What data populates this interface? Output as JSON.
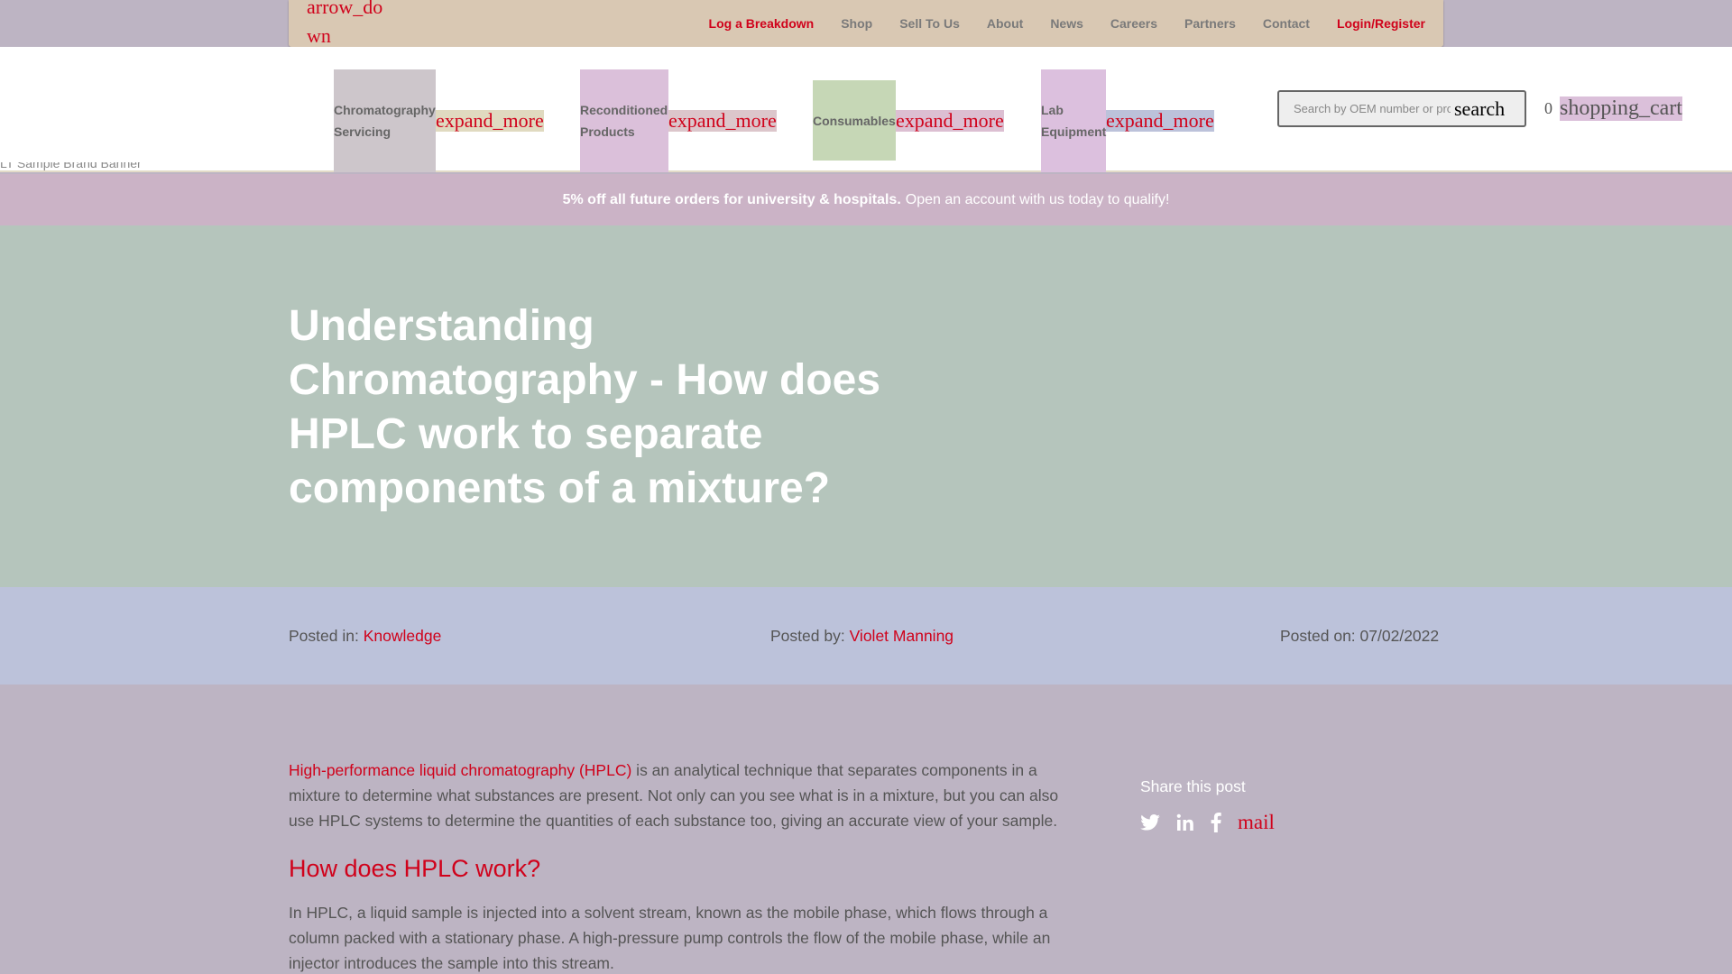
{
  "topbar": {
    "arrow_icon_text": "arrow_down",
    "links": [
      "Log a Breakdown",
      "Shop",
      "Sell To Us",
      "About",
      "News",
      "Careers",
      "Partners",
      "Contact",
      "Login/Register"
    ]
  },
  "menu": {
    "items": [
      {
        "label": "Chromatography Servicing",
        "expand": "expand_more"
      },
      {
        "label": "Reconditioned Products",
        "expand": "expand_more"
      },
      {
        "label": "Consumables",
        "expand": "expand_more"
      },
      {
        "label": "Lab Equipment",
        "expand": "expand_more"
      }
    ]
  },
  "search": {
    "placeholder": "Search by OEM number or product",
    "icon": "search"
  },
  "cart": {
    "count": "0",
    "icon": "shopping_cart"
  },
  "broken_image_alt": "LT Sample Brand Banner",
  "promo": {
    "bold": "5% off all future orders for university & hospitals.",
    "rest": "Open an account with us today to qualify!"
  },
  "hero": {
    "title": "Understanding Chromatography - How does HPLC work to separate components of a mixture?"
  },
  "meta": {
    "posted_in_label": "Posted in:",
    "posted_in_value": "Knowledge",
    "posted_by_label": "Posted by:",
    "posted_by_value": "Violet Manning",
    "posted_on_label": "Posted on:",
    "posted_on_value": "07/02/2022"
  },
  "article": {
    "intro_link": "High-performance liquid chromatography (HPLC)",
    "intro_rest": " is an analytical technique that separates components in a mixture to determine what substances are present. Not only can you see what is in a mixture, but you can also use HPLC systems to determine the quantities of each substance too, giving an accurate view of your sample.",
    "heading": "How does HPLC work?",
    "para2": "In HPLC, a liquid sample is injected into a solvent stream, known as the mobile phase, which flows through a column packed with a stationary phase. A high-pressure pump controls the flow of the mobile phase, while an injector introduces the sample into this stream."
  },
  "share": {
    "title": "Share this post",
    "mail_icon": "mail"
  },
  "colors": {
    "accent": "#d0021b"
  }
}
